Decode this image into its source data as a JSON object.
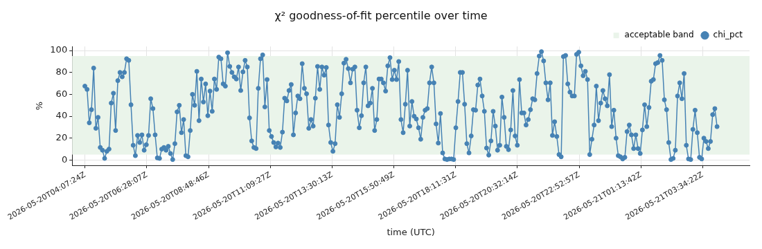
{
  "chart_data": {
    "type": "line",
    "title": "χ² goodness-of-fit percentile over time",
    "xlabel": "time (UTC)",
    "ylabel": "%",
    "x": [
      "2026-05-20T04:07",
      "2026-05-20T04:12",
      "2026-05-20T04:17",
      "2026-05-20T04:22",
      "2026-05-20T04:27",
      "2026-05-20T04:32",
      "2026-05-20T04:37",
      "2026-05-20T04:42",
      "2026-05-20T04:47",
      "2026-05-20T04:52",
      "2026-05-20T04:57",
      "2026-05-20T05:02",
      "2026-05-20T05:07",
      "2026-05-20T05:12",
      "2026-05-20T05:17",
      "2026-05-20T05:22",
      "2026-05-20T05:27",
      "2026-05-20T05:32",
      "2026-05-20T05:37",
      "2026-05-20T05:42",
      "2026-05-20T05:47",
      "2026-05-20T05:52",
      "2026-05-20T05:57",
      "2026-05-20T06:02",
      "2026-05-20T06:07",
      "2026-05-20T06:12",
      "2026-05-20T06:17",
      "2026-05-20T06:22",
      "2026-05-20T06:27",
      "2026-05-20T06:32",
      "2026-05-20T06:37",
      "2026-05-20T06:42",
      "2026-05-20T06:47",
      "2026-05-20T06:52",
      "2026-05-20T06:57",
      "2026-05-20T07:02",
      "2026-05-20T07:07",
      "2026-05-20T07:12",
      "2026-05-20T07:17",
      "2026-05-20T07:22",
      "2026-05-20T07:27",
      "2026-05-20T07:32",
      "2026-05-20T07:37",
      "2026-05-20T07:42",
      "2026-05-20T07:47",
      "2026-05-20T07:52",
      "2026-05-20T07:57",
      "2026-05-20T08:02",
      "2026-05-20T08:07",
      "2026-05-20T08:12",
      "2026-05-20T08:17",
      "2026-05-20T08:22",
      "2026-05-20T08:27",
      "2026-05-20T08:32",
      "2026-05-20T08:37",
      "2026-05-20T08:42",
      "2026-05-20T08:47",
      "2026-05-20T08:52",
      "2026-05-20T08:57",
      "2026-05-20T09:02",
      "2026-05-20T09:07",
      "2026-05-20T09:12",
      "2026-05-20T09:17",
      "2026-05-20T09:22",
      "2026-05-20T09:27",
      "2026-05-20T09:32",
      "2026-05-20T09:37",
      "2026-05-20T09:42",
      "2026-05-20T09:47",
      "2026-05-20T09:52",
      "2026-05-20T09:57",
      "2026-05-20T10:02",
      "2026-05-20T10:07",
      "2026-05-20T10:12",
      "2026-05-20T10:17",
      "2026-05-20T10:22",
      "2026-05-20T10:27",
      "2026-05-20T10:32",
      "2026-05-20T10:37",
      "2026-05-20T10:42",
      "2026-05-20T10:47",
      "2026-05-20T10:52",
      "2026-05-20T10:57",
      "2026-05-20T11:02",
      "2026-05-20T11:07",
      "2026-05-20T11:12",
      "2026-05-20T11:17",
      "2026-05-20T11:22",
      "2026-05-20T11:27",
      "2026-05-20T11:32",
      "2026-05-20T11:37",
      "2026-05-20T11:42",
      "2026-05-20T11:47",
      "2026-05-20T11:52",
      "2026-05-20T11:57",
      "2026-05-20T12:02",
      "2026-05-20T12:07",
      "2026-05-20T12:12",
      "2026-05-20T12:17",
      "2026-05-20T12:22",
      "2026-05-20T12:27",
      "2026-05-20T12:32",
      "2026-05-20T12:37",
      "2026-05-20T12:42",
      "2026-05-20T12:47",
      "2026-05-20T12:52",
      "2026-05-20T12:57",
      "2026-05-20T13:02",
      "2026-05-20T13:07",
      "2026-05-20T13:12",
      "2026-05-20T13:17",
      "2026-05-20T13:22",
      "2026-05-20T13:27",
      "2026-05-20T13:32",
      "2026-05-20T13:37",
      "2026-05-20T13:42",
      "2026-05-20T13:47",
      "2026-05-20T13:52",
      "2026-05-20T13:57",
      "2026-05-20T14:02",
      "2026-05-20T14:07",
      "2026-05-20T14:12",
      "2026-05-20T14:17",
      "2026-05-20T14:22",
      "2026-05-20T14:27",
      "2026-05-20T14:32",
      "2026-05-20T14:37",
      "2026-05-20T14:42",
      "2026-05-20T14:47",
      "2026-05-20T14:52",
      "2026-05-20T14:57",
      "2026-05-20T15:02",
      "2026-05-20T15:07",
      "2026-05-20T15:12",
      "2026-05-20T15:17",
      "2026-05-20T15:22",
      "2026-05-20T15:27",
      "2026-05-20T15:32",
      "2026-05-20T15:37",
      "2026-05-20T15:42",
      "2026-05-20T15:47",
      "2026-05-20T15:52",
      "2026-05-20T15:57",
      "2026-05-20T16:02",
      "2026-05-20T16:07",
      "2026-05-20T16:12",
      "2026-05-20T16:17",
      "2026-05-20T16:22",
      "2026-05-20T16:27",
      "2026-05-20T16:32",
      "2026-05-20T16:37",
      "2026-05-20T16:42",
      "2026-05-20T16:47",
      "2026-05-20T16:52",
      "2026-05-20T16:57",
      "2026-05-20T17:02",
      "2026-05-20T17:07",
      "2026-05-20T17:12",
      "2026-05-20T17:17",
      "2026-05-20T17:22",
      "2026-05-20T17:27",
      "2026-05-20T17:32",
      "2026-05-20T17:37",
      "2026-05-20T17:42",
      "2026-05-20T17:47",
      "2026-05-20T17:52",
      "2026-05-20T17:57",
      "2026-05-20T18:02",
      "2026-05-20T18:07",
      "2026-05-20T18:12",
      "2026-05-20T18:17",
      "2026-05-20T18:22",
      "2026-05-20T18:27",
      "2026-05-20T18:32",
      "2026-05-20T18:37",
      "2026-05-20T18:42",
      "2026-05-20T18:47",
      "2026-05-20T18:52",
      "2026-05-20T18:57",
      "2026-05-20T19:02",
      "2026-05-20T19:07",
      "2026-05-20T19:12",
      "2026-05-20T19:17",
      "2026-05-20T19:22",
      "2026-05-20T19:27",
      "2026-05-20T19:32",
      "2026-05-20T19:37",
      "2026-05-20T19:42",
      "2026-05-20T19:47",
      "2026-05-20T19:52",
      "2026-05-20T19:57",
      "2026-05-20T20:02",
      "2026-05-20T20:07",
      "2026-05-20T20:12",
      "2026-05-20T20:17",
      "2026-05-20T20:22",
      "2026-05-20T20:27",
      "2026-05-20T20:32",
      "2026-05-20T20:37",
      "2026-05-20T20:42",
      "2026-05-20T20:47",
      "2026-05-20T20:52",
      "2026-05-20T20:57",
      "2026-05-20T21:02",
      "2026-05-20T21:07",
      "2026-05-20T21:12",
      "2026-05-20T21:17",
      "2026-05-20T21:22",
      "2026-05-20T21:27",
      "2026-05-20T21:32",
      "2026-05-20T21:37",
      "2026-05-20T21:42",
      "2026-05-20T21:47",
      "2026-05-20T21:52",
      "2026-05-20T21:57",
      "2026-05-20T22:02",
      "2026-05-20T22:07",
      "2026-05-20T22:12",
      "2026-05-20T22:17",
      "2026-05-20T22:22",
      "2026-05-20T22:27",
      "2026-05-20T22:32",
      "2026-05-20T22:37",
      "2026-05-20T22:42",
      "2026-05-20T22:47",
      "2026-05-20T22:52",
      "2026-05-20T22:57",
      "2026-05-20T23:02",
      "2026-05-20T23:07",
      "2026-05-20T23:12",
      "2026-05-20T23:17",
      "2026-05-20T23:22",
      "2026-05-20T23:27",
      "2026-05-20T23:32",
      "2026-05-20T23:37",
      "2026-05-20T23:42",
      "2026-05-20T23:47",
      "2026-05-20T23:52",
      "2026-05-20T23:57",
      "2026-05-21T00:02",
      "2026-05-21T00:07",
      "2026-05-21T00:12",
      "2026-05-21T00:17",
      "2026-05-21T00:22",
      "2026-05-21T00:27",
      "2026-05-21T00:32",
      "2026-05-21T00:37",
      "2026-05-21T00:42",
      "2026-05-21T00:47",
      "2026-05-21T00:52",
      "2026-05-21T00:57",
      "2026-05-21T01:02",
      "2026-05-21T01:07",
      "2026-05-21T01:12",
      "2026-05-21T01:17",
      "2026-05-21T01:22",
      "2026-05-21T01:27",
      "2026-05-21T01:32",
      "2026-05-21T01:37",
      "2026-05-21T01:42",
      "2026-05-21T01:47",
      "2026-05-21T01:52",
      "2026-05-21T01:57",
      "2026-05-21T02:02",
      "2026-05-21T02:07",
      "2026-05-21T02:12",
      "2026-05-21T02:17",
      "2026-05-21T02:22",
      "2026-05-21T02:27",
      "2026-05-21T02:32",
      "2026-05-21T02:37",
      "2026-05-21T02:42",
      "2026-05-21T02:47",
      "2026-05-21T02:52",
      "2026-05-21T02:57",
      "2026-05-21T03:02",
      "2026-05-21T03:07",
      "2026-05-21T03:12",
      "2026-05-21T03:17",
      "2026-05-21T03:22",
      "2026-05-21T03:27",
      "2026-05-21T03:32",
      "2026-05-21T03:37",
      "2026-05-21T03:42",
      "2026-05-21T03:47",
      "2026-05-21T03:52",
      "2026-05-21T03:57",
      "2026-05-21T04:02",
      "2026-05-21T04:07"
    ],
    "series": [
      {
        "name": "chi_pct",
        "color": "#4682b4",
        "values": [
          67.5,
          64.5,
          34,
          46,
          84,
          29,
          39,
          11.5,
          9,
          1.5,
          8,
          10,
          52,
          61,
          27,
          72.5,
          80,
          76,
          80,
          92.5,
          91,
          50.5,
          13.5,
          4,
          22.5,
          16,
          23,
          9,
          14,
          22.5,
          56,
          47,
          23,
          2,
          1.5,
          10,
          11.5,
          9,
          12.5,
          6,
          0.5,
          15,
          44,
          50,
          25,
          37,
          4,
          3,
          27,
          60,
          50,
          81,
          36,
          74,
          53,
          69.5,
          40.5,
          63,
          44.5,
          74,
          64.5,
          94,
          92.5,
          69.5,
          67.5,
          98,
          85.5,
          80,
          76,
          74,
          85,
          63.5,
          80.5,
          91,
          85,
          38.5,
          17.5,
          11.5,
          10.5,
          65.5,
          92.5,
          96,
          48.5,
          73.5,
          27,
          21.5,
          16,
          12,
          15.5,
          11.5,
          25.5,
          56.5,
          54,
          63.5,
          69,
          23,
          43,
          58.5,
          56,
          88,
          65.5,
          60.5,
          29,
          37,
          31,
          56.5,
          85.5,
          64.5,
          85,
          77.5,
          84.5,
          32,
          16,
          8,
          15,
          50.5,
          39,
          60.5,
          88.5,
          92,
          83.5,
          70.5,
          83,
          85,
          45.5,
          29.5,
          40.5,
          70.5,
          85,
          49.5,
          52,
          65.5,
          27,
          37,
          74,
          74,
          70.5,
          63,
          86,
          93.5,
          73.5,
          82,
          73.5,
          90,
          37,
          25,
          51,
          82,
          31,
          53.5,
          40,
          37.5,
          29.5,
          19,
          39,
          45.5,
          47,
          70.5,
          85,
          70.5,
          33,
          15.5,
          42.5,
          6.5,
          1,
          0.5,
          1,
          1,
          0.5,
          29.5,
          53.5,
          80,
          80,
          51,
          15,
          6.5,
          22,
          46,
          45.5,
          68.5,
          74,
          58.5,
          44.5,
          11,
          4.5,
          17.5,
          44.5,
          31,
          9,
          13.5,
          57.5,
          39,
          12.5,
          9.5,
          27.5,
          63.5,
          22,
          13.5,
          73.5,
          43,
          43,
          32,
          37,
          46,
          56,
          55,
          79,
          95,
          99,
          90.5,
          70.5,
          55,
          70.5,
          22.5,
          35,
          21.5,
          5,
          3,
          94.5,
          95.5,
          69.5,
          62,
          58.5,
          58.5,
          96.5,
          98.5,
          86,
          77,
          81,
          73.5,
          5,
          19,
          32,
          67.5,
          36,
          52,
          63.5,
          56,
          49.5,
          78,
          30.5,
          45.5,
          20,
          4,
          3,
          1,
          2.5,
          26,
          32,
          23,
          10.5,
          23,
          10.5,
          6,
          27.5,
          50.5,
          30.5,
          48,
          72,
          73.5,
          88,
          89,
          95.5,
          91,
          55,
          46,
          16,
          0.5,
          1.5,
          9,
          58.5,
          70.5,
          56,
          79,
          13.5,
          1,
          0.5,
          28,
          45.5,
          25,
          2.5,
          1,
          20,
          17,
          10.5,
          17,
          41.5,
          47,
          30.5
        ]
      }
    ],
    "xlim": [
      "2026-05-20T03:38",
      "2026-05-21T05:21"
    ],
    "xticks": [
      {
        "value": "2026-05-20T04:07:24",
        "label": "2026-05-20T04:07:24Z"
      },
      {
        "value": "2026-05-20T06:28:07",
        "label": "2026-05-20T06:28:07Z"
      },
      {
        "value": "2026-05-20T08:48:46",
        "label": "2026-05-20T08:48:46Z"
      },
      {
        "value": "2026-05-20T11:09:27",
        "label": "2026-05-20T11:09:27Z"
      },
      {
        "value": "2026-05-20T13:30:13",
        "label": "2026-05-20T13:30:13Z"
      },
      {
        "value": "2026-05-20T15:50:49",
        "label": "2026-05-20T15:50:49Z"
      },
      {
        "value": "2026-05-20T18:11:31",
        "label": "2026-05-20T18:11:31Z"
      },
      {
        "value": "2026-05-20T20:32:14",
        "label": "2026-05-20T20:32:14Z"
      },
      {
        "value": "2026-05-20T22:52:57",
        "label": "2026-05-20T22:52:57Z"
      },
      {
        "value": "2026-05-21T01:13:42",
        "label": "2026-05-21T01:13:42Z"
      },
      {
        "value": "2026-05-21T03:34:22",
        "label": "2026-05-21T03:34:22Z"
      }
    ],
    "ylim": [
      -4.9,
      103.7
    ],
    "yticks": [
      0,
      20,
      40,
      60,
      80,
      100
    ],
    "bands": [
      {
        "axis": "y",
        "from": 5,
        "to": 95,
        "label": "acceptable band",
        "color": "#eaf4ea"
      }
    ],
    "grid": true,
    "legend": "top right",
    "marker": "circle",
    "line_style": "solid"
  }
}
